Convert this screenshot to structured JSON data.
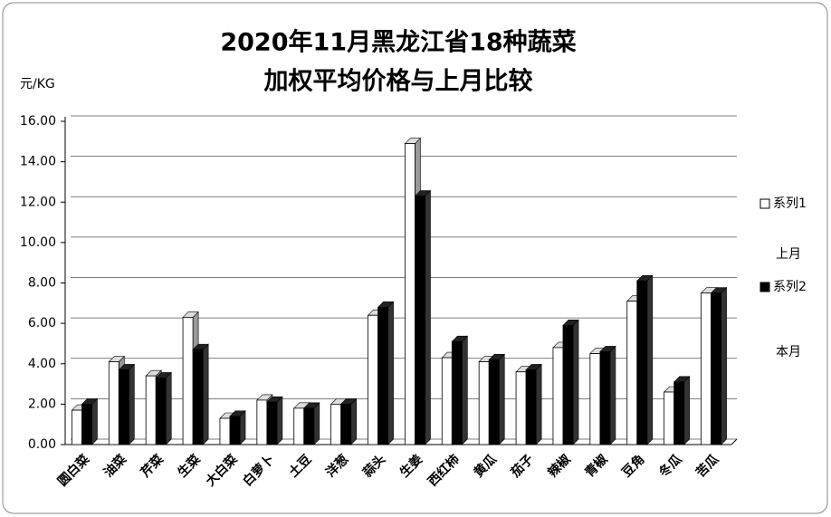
{
  "chart_data": {
    "type": "bar",
    "title": [
      "2020年11月黑龙江省18种蔬菜",
      "加权平均价格与上月比较"
    ],
    "y_label": "元/KG",
    "categories": [
      "圆白菜",
      "油菜",
      "芹菜",
      "生菜",
      "大白菜",
      "白萝卜",
      "土豆",
      "洋葱",
      "蒜头",
      "生姜",
      "西红柿",
      "黄瓜",
      "茄子",
      "辣椒",
      "青椒",
      "豆角",
      "冬瓜",
      "苦瓜"
    ],
    "series": [
      {
        "name": "系列1",
        "color": "#ffffff",
        "values": [
          1.7,
          4.1,
          3.4,
          6.3,
          1.3,
          2.2,
          1.8,
          2.0,
          6.4,
          14.9,
          4.3,
          4.1,
          3.6,
          4.8,
          4.5,
          7.1,
          2.6,
          7.5
        ]
      },
      {
        "name": "系列2",
        "color": "#000000",
        "values": [
          2.0,
          3.7,
          3.3,
          4.7,
          1.4,
          2.1,
          1.8,
          2.0,
          6.8,
          12.3,
          5.1,
          4.2,
          3.7,
          5.9,
          4.6,
          8.1,
          3.1,
          7.5
        ]
      }
    ],
    "annotations": [
      "上月",
      "本月"
    ],
    "ylim": [
      0,
      16
    ],
    "yticks": [
      {
        "value": 0,
        "label": "0.00"
      },
      {
        "value": 2,
        "label": "2.00"
      },
      {
        "value": 4,
        "label": "4.00"
      },
      {
        "value": 6,
        "label": "6.00"
      },
      {
        "value": 8,
        "label": "8.00"
      },
      {
        "value": 10,
        "label": "10.00"
      },
      {
        "value": 12,
        "label": "12.00"
      },
      {
        "value": 14,
        "label": "14.00"
      },
      {
        "value": 16,
        "label": "16.00"
      }
    ],
    "grid": true,
    "legend": "right"
  }
}
